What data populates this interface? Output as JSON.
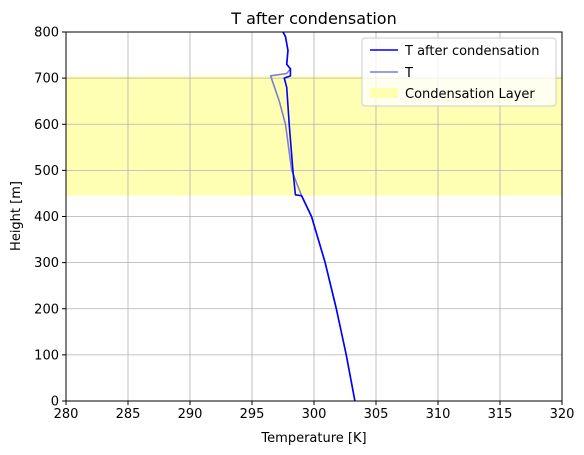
{
  "chart_data": {
    "type": "line",
    "title": "T after condensation",
    "xlabel": "Temperature [K]",
    "ylabel": "Height [m]",
    "xlim": [
      280,
      320
    ],
    "ylim": [
      0,
      800
    ],
    "xticks": [
      "280",
      "285",
      "290",
      "295",
      "300",
      "305",
      "310",
      "315",
      "320"
    ],
    "yticks": [
      "0",
      "100",
      "200",
      "300",
      "400",
      "500",
      "600",
      "700",
      "800"
    ],
    "grid": true,
    "legend_position": "top-right",
    "band": {
      "name": "Condensation Layer",
      "y0": 445,
      "y1": 705,
      "color": "#ffff99",
      "opacity": 0.75
    },
    "series": [
      {
        "name": "T after condensation",
        "color": "#0000ff",
        "points": [
          [
            303.3,
            0
          ],
          [
            302.6,
            100
          ],
          [
            301.8,
            200
          ],
          [
            300.9,
            300
          ],
          [
            299.8,
            400
          ],
          [
            299.0,
            445
          ],
          [
            298.5,
            447
          ],
          [
            298.3,
            500
          ],
          [
            298.0,
            600
          ],
          [
            297.8,
            680
          ],
          [
            297.6,
            700
          ],
          [
            298.1,
            705
          ],
          [
            298.1,
            720
          ],
          [
            297.8,
            730
          ],
          [
            297.9,
            760
          ],
          [
            297.7,
            790
          ],
          [
            297.5,
            800
          ]
        ]
      },
      {
        "name": "T",
        "color": "#7f7fd0",
        "points": [
          [
            303.3,
            0
          ],
          [
            302.6,
            100
          ],
          [
            301.8,
            200
          ],
          [
            300.9,
            300
          ],
          [
            299.8,
            400
          ],
          [
            299.0,
            445
          ],
          [
            298.2,
            500
          ],
          [
            297.7,
            600
          ],
          [
            297.2,
            650
          ],
          [
            296.5,
            705
          ],
          [
            297.8,
            710
          ],
          [
            298.1,
            720
          ],
          [
            297.8,
            730
          ],
          [
            297.9,
            760
          ],
          [
            297.7,
            790
          ],
          [
            297.5,
            800
          ]
        ]
      }
    ]
  }
}
